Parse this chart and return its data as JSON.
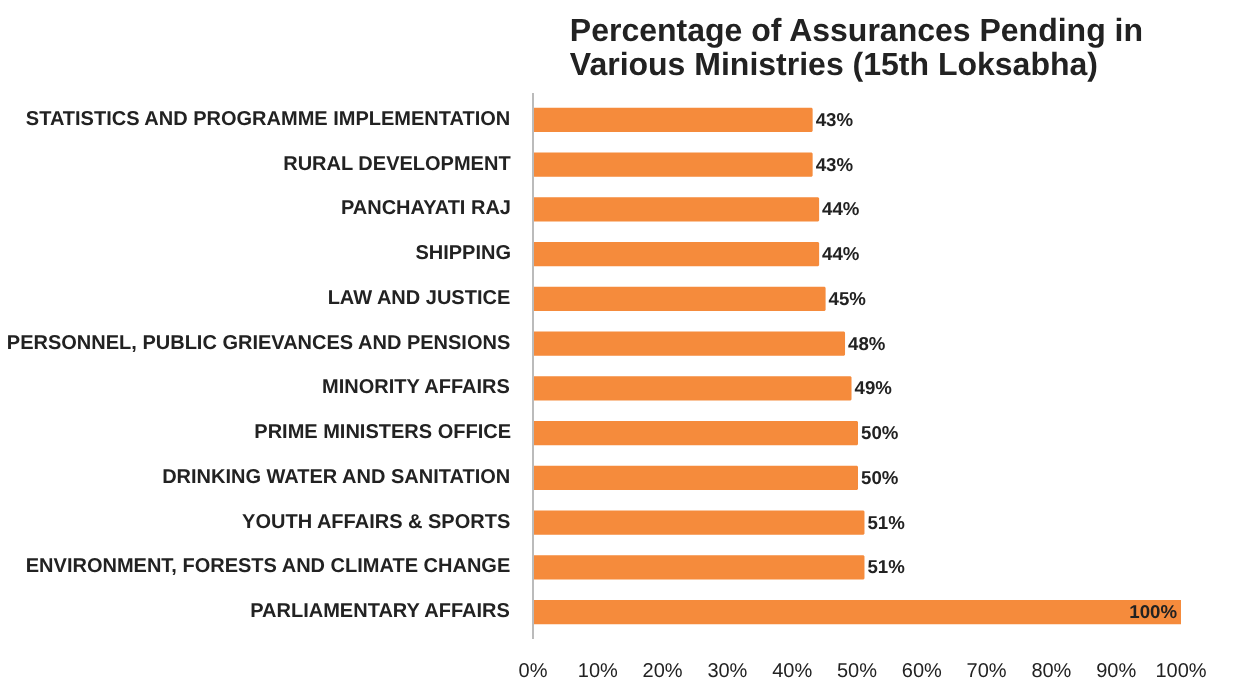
{
  "chart_data": {
    "type": "bar",
    "orientation": "horizontal",
    "title": "Percentage of Assurances Pending in\nVarious Ministries (15th Loksabha)",
    "categories": [
      "STATISTICS AND PROGRAMME IMPLEMENTATION",
      "RURAL DEVELOPMENT",
      "PANCHAYATI RAJ",
      "SHIPPING",
      "LAW AND JUSTICE",
      "PERSONNEL, PUBLIC GRIEVANCES AND PENSIONS",
      "MINORITY AFFAIRS",
      "PRIME MINISTERS OFFICE",
      "DRINKING WATER AND SANITATION",
      "YOUTH AFFAIRS & SPORTS",
      "ENVIRONMENT, FORESTS AND CLIMATE CHANGE",
      "PARLIAMENTARY AFFAIRS"
    ],
    "values": [
      43,
      43,
      44,
      44,
      45,
      48,
      49,
      50,
      50,
      51,
      51,
      100
    ],
    "value_labels": [
      "43%",
      "43%",
      "44%",
      "44%",
      "45%",
      "48%",
      "49%",
      "50%",
      "50%",
      "51%",
      "51%",
      "100%"
    ],
    "color": "#f58b3c",
    "xlim": [
      0,
      100
    ],
    "xticks": [
      {
        "value": 0,
        "label": "0%"
      },
      {
        "value": 10,
        "label": "10%"
      },
      {
        "value": 20,
        "label": "20%"
      },
      {
        "value": 30,
        "label": "30%"
      },
      {
        "value": 40,
        "label": "40%"
      },
      {
        "value": 50,
        "label": "50%"
      },
      {
        "value": 60,
        "label": "60%"
      },
      {
        "value": 70,
        "label": "70%"
      },
      {
        "value": 80,
        "label": "80%"
      },
      {
        "value": 90,
        "label": "90%"
      },
      {
        "value": 100,
        "label": "100%"
      }
    ],
    "grid": false
  }
}
